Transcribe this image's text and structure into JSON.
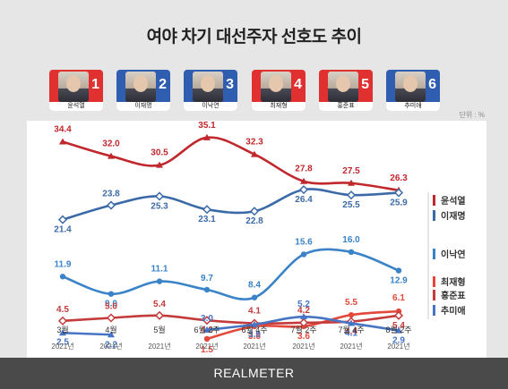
{
  "title": "여야 차기 대선주자 선호도 추이",
  "unit": "단위 : %",
  "brand": "REALMETER",
  "candidates": [
    {
      "name": "윤석열",
      "number": "1",
      "color": "#e03030"
    },
    {
      "name": "이재명",
      "number": "2",
      "color": "#2f5db0"
    },
    {
      "name": "이낙연",
      "number": "3",
      "color": "#2f5db0"
    },
    {
      "name": "최재형",
      "number": "4",
      "color": "#e03030"
    },
    {
      "name": "홍준표",
      "number": "5",
      "color": "#e03030"
    },
    {
      "name": "추미애",
      "number": "6",
      "color": "#2f5db0"
    }
  ],
  "chart_data": {
    "type": "line",
    "categories": [
      "3월",
      "4월",
      "5월",
      "6월 2주",
      "6월 4주",
      "7월 2주",
      "7월 4주",
      "8월 2주"
    ],
    "category_years": [
      "2021년",
      "2021년",
      "2021년",
      "2021년",
      "2021년",
      "2021년",
      "2021년",
      "2021년"
    ],
    "series": [
      {
        "name": "윤석열",
        "color": "#c0282d",
        "marker": "triangle",
        "values": [
          34.4,
          32.0,
          30.5,
          35.1,
          32.3,
          27.8,
          27.5,
          26.3
        ]
      },
      {
        "name": "이재명",
        "color": "#3b6aa8",
        "marker": "diamond",
        "values": [
          21.4,
          23.8,
          25.3,
          23.1,
          22.8,
          26.4,
          25.5,
          25.9
        ]
      },
      {
        "name": "이낙연",
        "color": "#3a83c8",
        "marker": "circle",
        "values": [
          11.9,
          9.0,
          11.1,
          9.7,
          8.4,
          15.6,
          16.0,
          12.9
        ]
      },
      {
        "name": "최재형",
        "color": "#e3483a",
        "marker": "circle",
        "values": [
          null,
          null,
          null,
          1.5,
          3.6,
          3.6,
          5.5,
          6.1
        ]
      },
      {
        "name": "홍준표",
        "color": "#c33b3b",
        "marker": "diamond",
        "values": [
          4.5,
          5.0,
          5.4,
          4.6,
          4.1,
          4.2,
          4.4,
          5.4
        ]
      },
      {
        "name": "추미애",
        "color": "#4774c4",
        "marker": "triangle",
        "values": [
          2.5,
          2.2,
          null,
          3.0,
          3.9,
          5.2,
          4.1,
          2.9
        ]
      }
    ],
    "grid": false
  }
}
